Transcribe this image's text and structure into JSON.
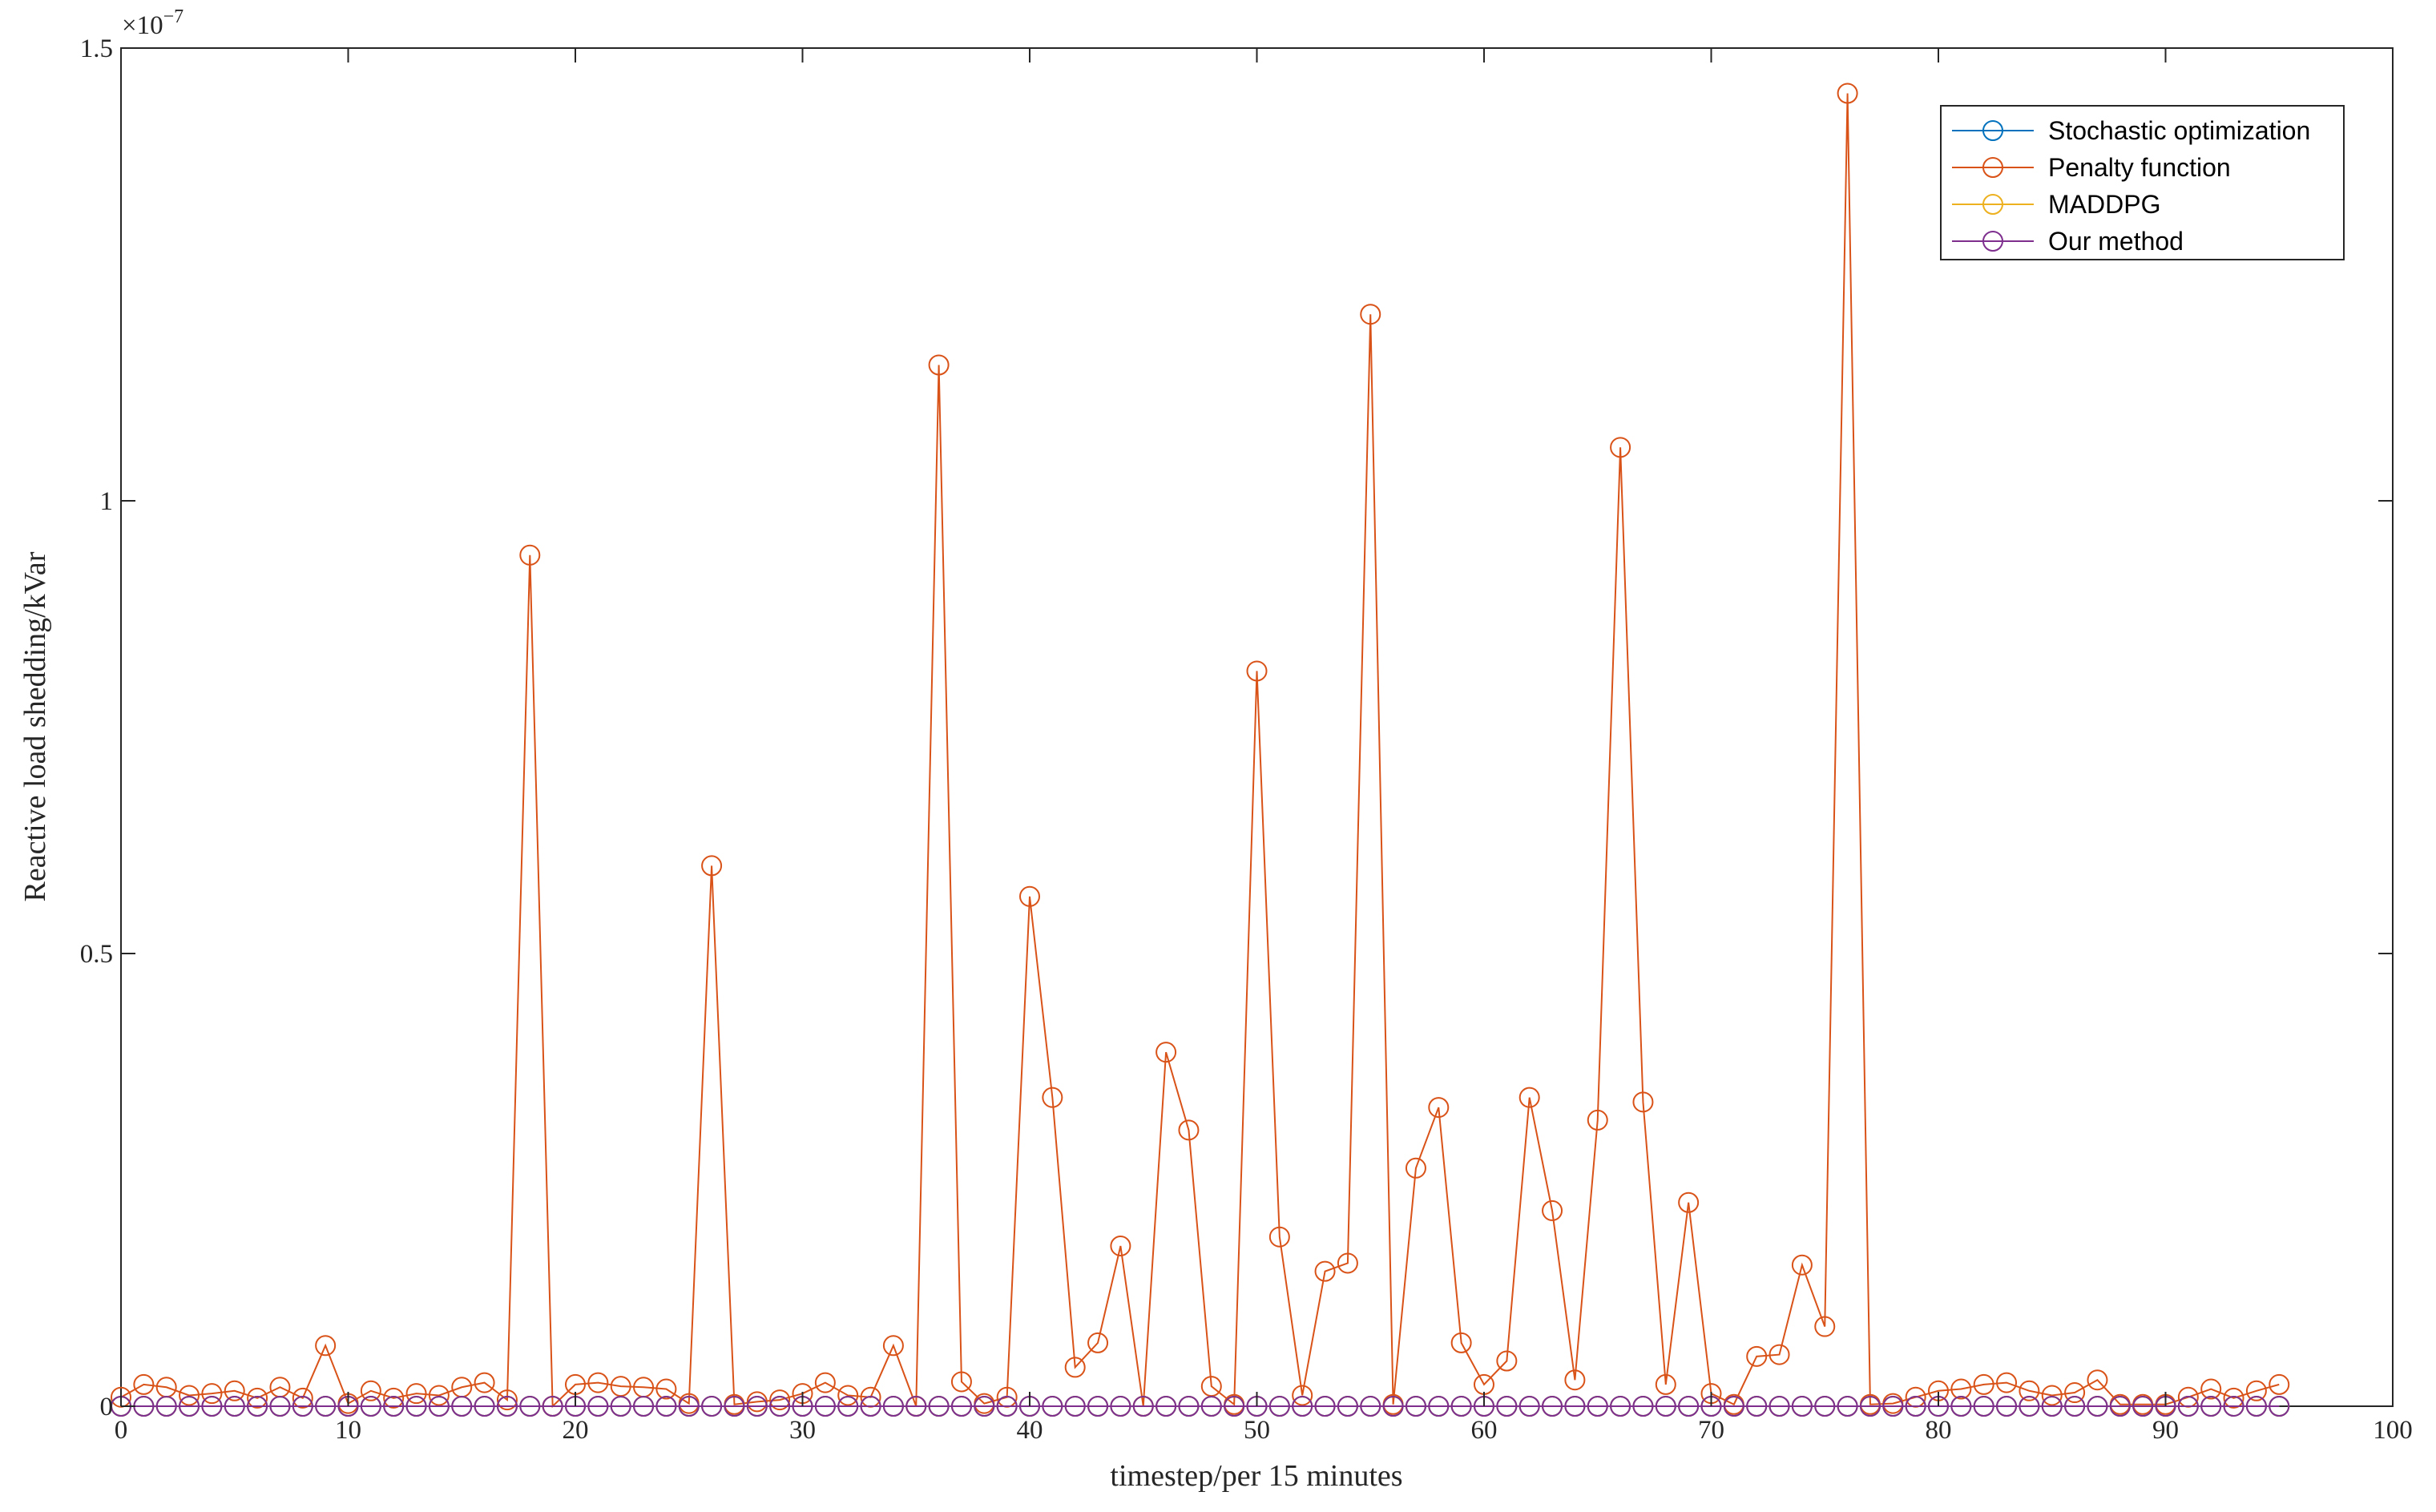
{
  "chart_data": {
    "type": "line",
    "y_label": "Reactive load shedding/kVar",
    "x_label": "timestep/per 15 minutes",
    "y_multiplier_base": "×10",
    "y_multiplier_exponent": "−7",
    "xlim": [
      0,
      100
    ],
    "xticks": [
      0,
      10,
      20,
      30,
      40,
      50,
      60,
      70,
      80,
      90,
      100
    ],
    "ylim": [
      0,
      1.5
    ],
    "yticks": [
      0,
      0.5,
      1,
      1.5
    ],
    "grid": false,
    "legend": "upper right",
    "marker": "circle",
    "x": [
      0,
      1,
      2,
      3,
      4,
      5,
      6,
      7,
      8,
      9,
      10,
      11,
      12,
      13,
      14,
      15,
      16,
      17,
      18,
      19,
      20,
      21,
      22,
      23,
      24,
      25,
      26,
      27,
      28,
      29,
      30,
      31,
      32,
      33,
      34,
      35,
      36,
      37,
      38,
      39,
      40,
      41,
      42,
      43,
      44,
      45,
      46,
      47,
      48,
      49,
      50,
      51,
      52,
      53,
      54,
      55,
      56,
      57,
      58,
      59,
      60,
      61,
      62,
      63,
      64,
      65,
      66,
      67,
      68,
      69,
      70,
      71,
      72,
      73,
      74,
      75,
      76,
      77,
      78,
      79,
      80,
      81,
      82,
      83,
      84,
      85,
      86,
      87,
      88,
      89,
      90,
      91,
      92,
      93,
      94,
      95
    ],
    "series": [
      {
        "name": "Stochastic optimization",
        "color": "#0072BD",
        "values": [
          0,
          0,
          0,
          0,
          0,
          0,
          0,
          0,
          0,
          0,
          0,
          0,
          0,
          0,
          0,
          0,
          0,
          0,
          0,
          0,
          0,
          0,
          0,
          0,
          0,
          0,
          0,
          0,
          0,
          0,
          0,
          0,
          0,
          0,
          0,
          0,
          0,
          0,
          0,
          0,
          0,
          0,
          0,
          0,
          0,
          0,
          0,
          0,
          0,
          0,
          0,
          0,
          0,
          0,
          0,
          0,
          0,
          0,
          0,
          0,
          0,
          0,
          0,
          0,
          0,
          0,
          0,
          0,
          0,
          0,
          0,
          0,
          0,
          0,
          0,
          0,
          0,
          0,
          0,
          0,
          0,
          0,
          0,
          0,
          0,
          0,
          0,
          0,
          0,
          0,
          0,
          0,
          0,
          0,
          0,
          0
        ]
      },
      {
        "name": "Penalty function",
        "color": "#D95319",
        "values": [
          0.01,
          0.024,
          0.021,
          0.012,
          0.014,
          0.017,
          0.009,
          0.021,
          0.009,
          0.067,
          0.003,
          0.017,
          0.009,
          0.014,
          0.012,
          0.021,
          0.026,
          0.007,
          0.94,
          0.0,
          0.024,
          0.026,
          0.022,
          0.021,
          0.019,
          0.003,
          0.597,
          0.002,
          0.005,
          0.007,
          0.014,
          0.026,
          0.012,
          0.01,
          0.067,
          0.0,
          1.15,
          0.027,
          0.003,
          0.01,
          0.563,
          0.341,
          0.043,
          0.07,
          0.177,
          0.0,
          0.391,
          0.305,
          0.022,
          0.002,
          0.812,
          0.187,
          0.012,
          0.149,
          0.158,
          1.206,
          0.002,
          0.263,
          0.33,
          0.07,
          0.024,
          0.05,
          0.341,
          0.216,
          0.029,
          0.316,
          1.059,
          0.336,
          0.024,
          0.225,
          0.014,
          0.002,
          0.055,
          0.057,
          0.156,
          0.088,
          1.45,
          0.002,
          0.003,
          0.01,
          0.017,
          0.019,
          0.024,
          0.026,
          0.017,
          0.012,
          0.015,
          0.029,
          0.002,
          0.002,
          0.002,
          0.01,
          0.019,
          0.009,
          0.017,
          0.024
        ]
      },
      {
        "name": "MADDPG",
        "color": "#EDB120",
        "values": [
          0,
          0,
          0,
          0,
          0,
          0,
          0,
          0,
          0,
          0,
          0,
          0,
          0,
          0,
          0,
          0,
          0,
          0,
          0,
          0,
          0,
          0,
          0,
          0,
          0,
          0,
          0,
          0,
          0,
          0,
          0,
          0,
          0,
          0,
          0,
          0,
          0,
          0,
          0,
          0,
          0,
          0,
          0,
          0,
          0,
          0,
          0,
          0,
          0,
          0,
          0,
          0,
          0,
          0,
          0,
          0,
          0,
          0,
          0,
          0,
          0,
          0,
          0,
          0,
          0,
          0,
          0,
          0,
          0,
          0,
          0,
          0,
          0,
          0,
          0,
          0,
          0,
          0,
          0,
          0,
          0,
          0,
          0,
          0,
          0,
          0,
          0,
          0,
          0,
          0,
          0,
          0,
          0,
          0,
          0,
          0
        ]
      },
      {
        "name": "Our method",
        "color": "#7E2F8E",
        "values": [
          0,
          0,
          0,
          0,
          0,
          0,
          0,
          0,
          0,
          0,
          0,
          0,
          0,
          0,
          0,
          0,
          0,
          0,
          0,
          0,
          0,
          0,
          0,
          0,
          0,
          0,
          0,
          0,
          0,
          0,
          0,
          0,
          0,
          0,
          0,
          0,
          0,
          0,
          0,
          0,
          0,
          0,
          0,
          0,
          0,
          0,
          0,
          0,
          0,
          0,
          0,
          0,
          0,
          0,
          0,
          0,
          0,
          0,
          0,
          0,
          0,
          0,
          0,
          0,
          0,
          0,
          0,
          0,
          0,
          0,
          0,
          0,
          0,
          0,
          0,
          0,
          0,
          0,
          0,
          0,
          0,
          0,
          0,
          0,
          0,
          0,
          0,
          0,
          0,
          0,
          0,
          0,
          0,
          0,
          0,
          0
        ]
      }
    ]
  }
}
